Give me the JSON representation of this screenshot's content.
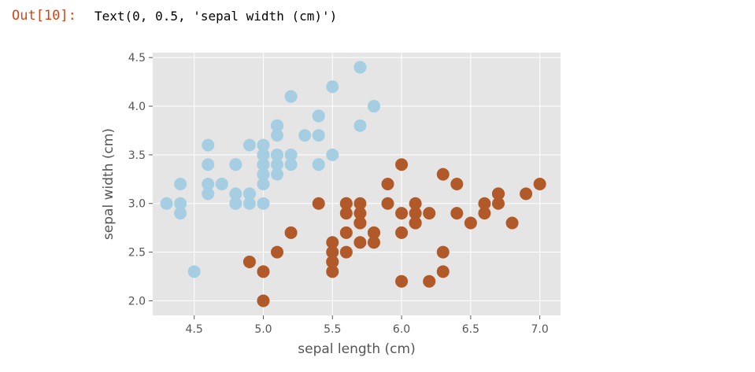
{
  "output": {
    "prompt": "Out[10]:",
    "text": "Text(0, 0.5, 'sepal width (cm)')"
  },
  "colors": {
    "prompt": "#d84315",
    "plot_bg": "#e5e5e5",
    "grid": "#ffffff",
    "class_0": "#a6cee3",
    "class_1": "#b15928"
  },
  "chart_data": {
    "type": "scatter",
    "title": "",
    "xlabel": "sepal length (cm)",
    "ylabel": "sepal width (cm)",
    "xlim": [
      4.2,
      7.15
    ],
    "ylim": [
      1.85,
      4.55
    ],
    "xticks": [
      4.5,
      5.0,
      5.5,
      6.0,
      6.5,
      7.0
    ],
    "xtick_labels": [
      "4.5",
      "5.0",
      "5.5",
      "6.0",
      "6.5",
      "7.0"
    ],
    "yticks": [
      2.0,
      2.5,
      3.0,
      3.5,
      4.0,
      4.5
    ],
    "ytick_labels": [
      "2.0",
      "2.5",
      "3.0",
      "3.5",
      "4.0",
      "4.5"
    ],
    "grid": true,
    "style": "ggplot",
    "series": [
      {
        "color": "#a6cee3",
        "points": [
          [
            5.1,
            3.5
          ],
          [
            4.9,
            3.0
          ],
          [
            4.7,
            3.2
          ],
          [
            4.6,
            3.1
          ],
          [
            5.0,
            3.6
          ],
          [
            5.4,
            3.9
          ],
          [
            4.6,
            3.4
          ],
          [
            5.0,
            3.4
          ],
          [
            4.4,
            2.9
          ],
          [
            4.9,
            3.1
          ],
          [
            5.4,
            3.7
          ],
          [
            4.8,
            3.4
          ],
          [
            4.8,
            3.0
          ],
          [
            4.3,
            3.0
          ],
          [
            5.8,
            4.0
          ],
          [
            5.7,
            4.4
          ],
          [
            5.4,
            3.9
          ],
          [
            5.1,
            3.5
          ],
          [
            5.7,
            3.8
          ],
          [
            5.1,
            3.8
          ],
          [
            5.4,
            3.4
          ],
          [
            5.1,
            3.7
          ],
          [
            4.6,
            3.6
          ],
          [
            5.1,
            3.3
          ],
          [
            4.8,
            3.4
          ],
          [
            5.0,
            3.0
          ],
          [
            5.0,
            3.4
          ],
          [
            5.2,
            3.5
          ],
          [
            5.2,
            3.4
          ],
          [
            4.7,
            3.2
          ],
          [
            4.8,
            3.1
          ],
          [
            5.4,
            3.4
          ],
          [
            5.2,
            4.1
          ],
          [
            5.5,
            4.2
          ],
          [
            4.9,
            3.1
          ],
          [
            5.0,
            3.2
          ],
          [
            5.5,
            3.5
          ],
          [
            4.9,
            3.6
          ],
          [
            4.4,
            3.0
          ],
          [
            5.1,
            3.4
          ],
          [
            5.0,
            3.5
          ],
          [
            4.5,
            2.3
          ],
          [
            4.4,
            3.2
          ],
          [
            5.0,
            3.5
          ],
          [
            5.1,
            3.8
          ],
          [
            4.8,
            3.0
          ],
          [
            5.1,
            3.8
          ],
          [
            4.6,
            3.2
          ],
          [
            5.3,
            3.7
          ],
          [
            5.0,
            3.3
          ]
        ]
      },
      {
        "color": "#b15928",
        "points": [
          [
            7.0,
            3.2
          ],
          [
            6.4,
            3.2
          ],
          [
            6.9,
            3.1
          ],
          [
            5.5,
            2.3
          ],
          [
            6.5,
            2.8
          ],
          [
            5.7,
            2.8
          ],
          [
            6.3,
            3.3
          ],
          [
            4.9,
            2.4
          ],
          [
            6.6,
            2.9
          ],
          [
            5.2,
            2.7
          ],
          [
            5.0,
            2.0
          ],
          [
            5.9,
            3.0
          ],
          [
            6.0,
            2.2
          ],
          [
            6.1,
            2.9
          ],
          [
            5.6,
            2.9
          ],
          [
            6.7,
            3.1
          ],
          [
            5.6,
            3.0
          ],
          [
            5.8,
            2.7
          ],
          [
            6.2,
            2.2
          ],
          [
            5.6,
            2.5
          ],
          [
            5.9,
            3.2
          ],
          [
            6.1,
            2.8
          ],
          [
            6.3,
            2.5
          ],
          [
            6.1,
            2.8
          ],
          [
            6.4,
            2.9
          ],
          [
            6.6,
            3.0
          ],
          [
            6.8,
            2.8
          ],
          [
            6.7,
            3.0
          ],
          [
            6.0,
            2.9
          ],
          [
            5.7,
            2.6
          ],
          [
            5.5,
            2.4
          ],
          [
            5.5,
            2.4
          ],
          [
            5.8,
            2.7
          ],
          [
            6.0,
            2.7
          ],
          [
            5.4,
            3.0
          ],
          [
            6.0,
            3.4
          ],
          [
            6.7,
            3.1
          ],
          [
            6.3,
            2.3
          ],
          [
            5.6,
            3.0
          ],
          [
            5.5,
            2.5
          ],
          [
            5.5,
            2.6
          ],
          [
            6.1,
            3.0
          ],
          [
            5.8,
            2.6
          ],
          [
            5.0,
            2.3
          ],
          [
            5.6,
            2.7
          ],
          [
            5.7,
            3.0
          ],
          [
            5.7,
            2.9
          ],
          [
            6.2,
            2.9
          ],
          [
            5.1,
            2.5
          ],
          [
            5.7,
            2.8
          ]
        ]
      }
    ]
  }
}
